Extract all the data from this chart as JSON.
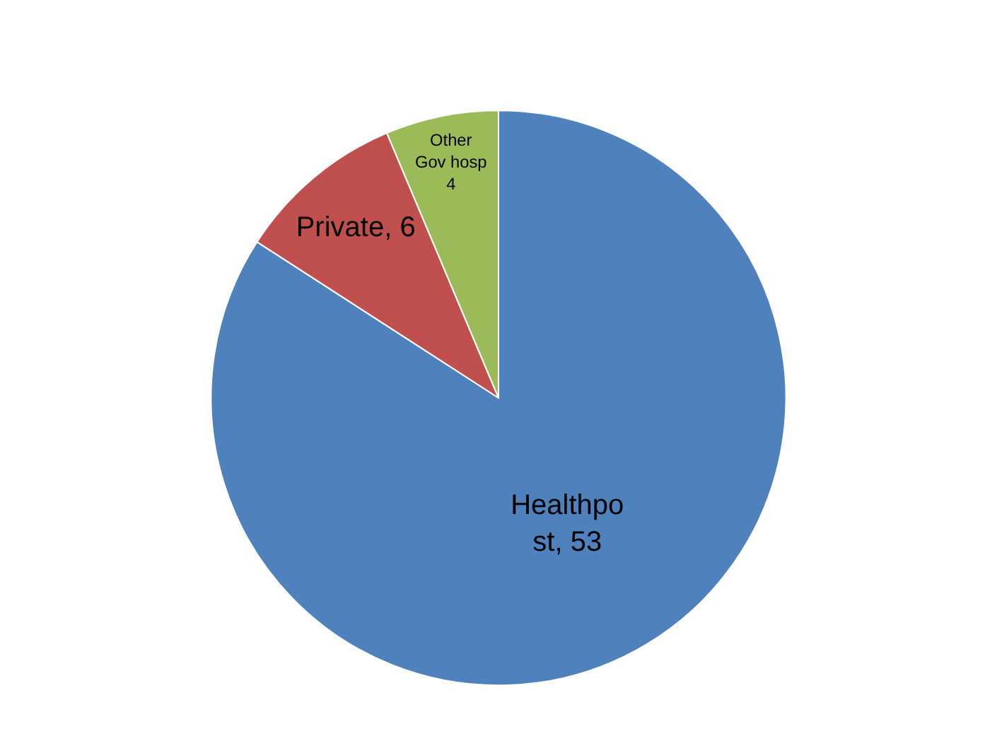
{
  "chart_data": {
    "type": "pie",
    "categories": [
      "Healthpo\nst",
      "Private",
      "Other\nGov hosp"
    ],
    "values": [
      53,
      6,
      4
    ],
    "colors": [
      "#4f81bd",
      "#c0504d",
      "#9bbb59"
    ],
    "value_labels": [
      ", 53",
      ", 6",
      "\n4"
    ],
    "legend": false
  }
}
